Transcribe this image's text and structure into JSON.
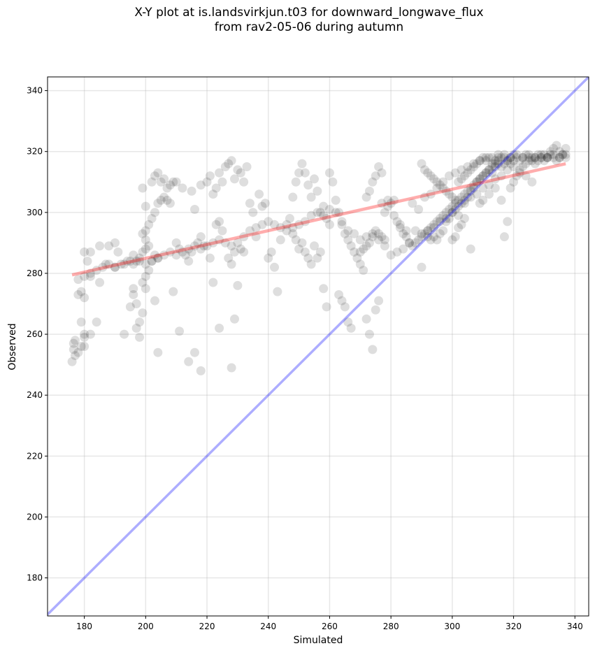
{
  "title": "X-Y plot at is.landsvirkjun.t03 for downward_longwave_flux",
  "subtitle": "from rav2-05-06 during autumn",
  "chart_data": {
    "type": "scatter",
    "title": "X-Y plot at is.landsvirkjun.t03 for downward_longwave_flux",
    "subtitle": "from rav2-05-06 during autumn",
    "xlabel": "Simulated",
    "ylabel": "Observed",
    "xlim": [
      168,
      344.5
    ],
    "ylim": [
      167.5,
      344.5
    ],
    "xticks": [
      180,
      200,
      220,
      240,
      260,
      280,
      300,
      320,
      340
    ],
    "yticks": [
      180,
      200,
      220,
      240,
      260,
      280,
      300,
      320,
      340
    ],
    "grid": true,
    "colors": {
      "points": "#000000",
      "fit_line": "#ff0000",
      "identity_line": "#0000ff"
    },
    "identity_line": {
      "x": [
        168,
        344.5
      ],
      "y": [
        168,
        344.5
      ]
    },
    "fit_line": {
      "x": [
        176,
        337
      ],
      "y": [
        279.5,
        316
      ]
    },
    "points": [
      [
        176,
        251
      ],
      [
        176.5,
        255
      ],
      [
        176.5,
        257
      ],
      [
        177,
        253
      ],
      [
        177,
        258
      ],
      [
        178,
        254
      ],
      [
        179,
        256
      ],
      [
        180,
        256
      ],
      [
        180,
        259
      ],
      [
        179,
        264
      ],
      [
        180,
        260
      ],
      [
        182,
        260
      ],
      [
        178,
        273
      ],
      [
        180,
        272
      ],
      [
        181,
        284
      ],
      [
        179,
        274
      ],
      [
        182,
        279
      ],
      [
        184,
        264
      ],
      [
        185,
        277
      ],
      [
        180,
        287
      ],
      [
        182,
        287
      ],
      [
        185,
        289
      ],
      [
        187,
        283
      ],
      [
        188,
        289
      ],
      [
        190,
        290
      ],
      [
        191,
        287
      ],
      [
        190,
        282
      ],
      [
        193,
        283
      ],
      [
        195,
        284
      ],
      [
        196,
        286
      ],
      [
        197,
        284
      ],
      [
        193,
        260
      ],
      [
        196,
        275
      ],
      [
        196,
        273
      ],
      [
        197,
        270
      ],
      [
        195,
        269
      ],
      [
        197,
        262
      ],
      [
        198,
        264
      ],
      [
        198,
        259
      ],
      [
        199,
        267
      ],
      [
        200,
        275
      ],
      [
        199,
        277
      ],
      [
        200,
        279
      ],
      [
        201,
        281
      ],
      [
        203,
        271
      ],
      [
        198,
        285
      ],
      [
        199,
        287
      ],
      [
        200,
        288
      ],
      [
        201,
        289
      ],
      [
        200,
        291
      ],
      [
        202,
        284
      ],
      [
        203,
        286
      ],
      [
        204,
        285
      ],
      [
        199,
        293
      ],
      [
        200,
        294
      ],
      [
        201,
        296
      ],
      [
        202,
        298
      ],
      [
        203,
        300
      ],
      [
        204,
        303
      ],
      [
        205,
        304
      ],
      [
        206,
        305
      ],
      [
        207,
        304
      ],
      [
        208,
        303
      ],
      [
        200,
        302
      ],
      [
        199,
        308
      ],
      [
        202,
        310
      ],
      [
        203,
        312
      ],
      [
        204,
        313
      ],
      [
        205,
        310
      ],
      [
        206,
        311
      ],
      [
        207,
        308
      ],
      [
        208,
        309
      ],
      [
        209,
        310
      ],
      [
        210,
        310
      ],
      [
        204,
        254
      ],
      [
        209,
        274
      ],
      [
        211,
        261
      ],
      [
        214,
        251
      ],
      [
        216,
        254
      ],
      [
        218,
        248
      ],
      [
        210,
        290
      ],
      [
        211,
        288
      ],
      [
        213,
        286
      ],
      [
        215,
        287
      ],
      [
        214,
        284
      ],
      [
        217,
        290
      ],
      [
        218,
        292
      ],
      [
        219,
        289
      ],
      [
        221,
        285
      ],
      [
        222,
        277
      ],
      [
        223,
        296
      ],
      [
        224,
        297
      ],
      [
        225,
        294
      ],
      [
        227,
        285
      ],
      [
        228,
        283
      ],
      [
        229,
        287
      ],
      [
        230,
        276
      ],
      [
        231,
        288
      ],
      [
        232,
        287
      ],
      [
        229,
        265
      ],
      [
        228,
        249
      ],
      [
        224,
        262
      ],
      [
        212,
        308
      ],
      [
        215,
        307
      ],
      [
        216,
        301
      ],
      [
        218,
        309
      ],
      [
        220,
        310
      ],
      [
        221,
        312
      ],
      [
        222,
        306
      ],
      [
        223,
        308
      ],
      [
        224,
        313
      ],
      [
        225,
        310
      ],
      [
        226,
        315
      ],
      [
        227,
        316
      ],
      [
        228,
        317
      ],
      [
        229,
        311
      ],
      [
        230,
        314
      ],
      [
        231,
        313
      ],
      [
        232,
        310
      ],
      [
        233,
        315
      ],
      [
        234,
        303
      ],
      [
        235,
        300
      ],
      [
        236,
        292
      ],
      [
        237,
        306
      ],
      [
        238,
        302
      ],
      [
        239,
        303
      ],
      [
        240,
        285
      ],
      [
        241,
        287
      ],
      [
        242,
        282
      ],
      [
        243,
        274
      ],
      [
        244,
        291
      ],
      [
        246,
        296
      ],
      [
        247,
        298
      ],
      [
        248,
        305
      ],
      [
        249,
        310
      ],
      [
        250,
        313
      ],
      [
        251,
        316
      ],
      [
        252,
        313
      ],
      [
        253,
        309
      ],
      [
        254,
        305
      ],
      [
        255,
        311
      ],
      [
        256,
        307
      ],
      [
        257,
        300
      ],
      [
        258,
        302
      ],
      [
        259,
        298
      ],
      [
        260,
        296
      ],
      [
        248,
        293
      ],
      [
        249,
        291
      ],
      [
        250,
        288
      ],
      [
        251,
        290
      ],
      [
        252,
        287
      ],
      [
        253,
        285
      ],
      [
        254,
        283
      ],
      [
        255,
        289
      ],
      [
        256,
        285
      ],
      [
        257,
        287
      ],
      [
        258,
        275
      ],
      [
        259,
        269
      ],
      [
        260,
        313
      ],
      [
        261,
        310
      ],
      [
        262,
        304
      ],
      [
        263,
        300
      ],
      [
        264,
        296
      ],
      [
        265,
        293
      ],
      [
        266,
        291
      ],
      [
        267,
        289
      ],
      [
        268,
        287
      ],
      [
        269,
        285
      ],
      [
        270,
        283
      ],
      [
        271,
        281
      ],
      [
        263,
        273
      ],
      [
        264,
        271
      ],
      [
        265,
        269
      ],
      [
        266,
        264
      ],
      [
        267,
        262
      ],
      [
        270,
        287
      ],
      [
        271,
        288
      ],
      [
        272,
        289
      ],
      [
        273,
        290
      ],
      [
        274,
        292
      ],
      [
        275,
        294
      ],
      [
        276,
        293
      ],
      [
        277,
        292
      ],
      [
        278,
        291
      ],
      [
        272,
        265
      ],
      [
        273,
        260
      ],
      [
        274,
        255
      ],
      [
        275,
        268
      ],
      [
        276,
        271
      ],
      [
        272,
        305
      ],
      [
        273,
        307
      ],
      [
        274,
        310
      ],
      [
        275,
        312
      ],
      [
        276,
        315
      ],
      [
        277,
        313
      ],
      [
        278,
        300
      ],
      [
        279,
        302
      ],
      [
        280,
        303
      ],
      [
        281,
        304
      ],
      [
        282,
        297
      ],
      [
        283,
        295
      ],
      [
        284,
        293
      ],
      [
        285,
        292
      ],
      [
        286,
        290
      ],
      [
        287,
        289
      ],
      [
        288,
        290
      ],
      [
        289,
        291
      ],
      [
        290,
        292
      ],
      [
        291,
        293
      ],
      [
        292,
        294
      ],
      [
        293,
        295
      ],
      [
        294,
        296
      ],
      [
        295,
        297
      ],
      [
        296,
        298
      ],
      [
        297,
        299
      ],
      [
        298,
        300
      ],
      [
        299,
        301
      ],
      [
        300,
        302
      ],
      [
        301,
        303
      ],
      [
        302,
        304
      ],
      [
        303,
        305
      ],
      [
        304,
        306
      ],
      [
        305,
        307
      ],
      [
        306,
        308
      ],
      [
        307,
        309
      ],
      [
        308,
        310
      ],
      [
        309,
        311
      ],
      [
        310,
        312
      ],
      [
        311,
        313
      ],
      [
        312,
        314
      ],
      [
        313,
        315
      ],
      [
        314,
        316
      ],
      [
        315,
        317
      ],
      [
        316,
        318
      ],
      [
        317,
        318
      ],
      [
        318,
        317
      ],
      [
        319,
        318
      ],
      [
        320,
        319
      ],
      [
        321,
        318
      ],
      [
        322,
        317
      ],
      [
        323,
        318
      ],
      [
        324,
        319
      ],
      [
        325,
        318
      ],
      [
        326,
        317
      ],
      [
        327,
        318
      ],
      [
        328,
        319
      ],
      [
        329,
        318
      ],
      [
        330,
        317
      ],
      [
        331,
        318
      ],
      [
        332,
        319
      ],
      [
        333,
        318
      ],
      [
        334,
        317
      ],
      [
        335,
        318
      ],
      [
        336,
        319
      ],
      [
        337,
        318
      ],
      [
        290,
        282
      ],
      [
        292,
        292
      ],
      [
        293,
        291
      ],
      [
        294,
        292
      ],
      [
        295,
        291
      ],
      [
        296,
        293
      ],
      [
        297,
        294
      ],
      [
        298,
        297
      ],
      [
        299,
        298
      ],
      [
        300,
        300
      ],
      [
        301,
        301
      ],
      [
        302,
        299
      ],
      [
        303,
        303
      ],
      [
        304,
        304
      ],
      [
        305,
        305
      ],
      [
        306,
        307
      ],
      [
        307,
        308
      ],
      [
        308,
        310
      ],
      [
        309,
        311
      ],
      [
        310,
        312
      ],
      [
        311,
        313
      ],
      [
        312,
        314
      ],
      [
        313,
        313
      ],
      [
        314,
        315
      ],
      [
        315,
        316
      ],
      [
        316,
        315
      ],
      [
        317,
        316
      ],
      [
        318,
        317
      ],
      [
        319,
        316
      ],
      [
        320,
        317
      ],
      [
        290,
        316
      ],
      [
        291,
        314
      ],
      [
        292,
        313
      ],
      [
        293,
        312
      ],
      [
        294,
        311
      ],
      [
        295,
        310
      ],
      [
        296,
        309
      ],
      [
        297,
        308
      ],
      [
        298,
        307
      ],
      [
        299,
        306
      ],
      [
        300,
        305
      ],
      [
        301,
        304
      ],
      [
        302,
        310
      ],
      [
        303,
        311
      ],
      [
        304,
        312
      ],
      [
        305,
        313
      ],
      [
        306,
        314
      ],
      [
        307,
        315
      ],
      [
        308,
        316
      ],
      [
        309,
        317
      ],
      [
        310,
        318
      ],
      [
        311,
        317
      ],
      [
        312,
        318
      ],
      [
        313,
        316
      ],
      [
        314,
        317
      ],
      [
        315,
        318
      ],
      [
        300,
        291
      ],
      [
        301,
        292
      ],
      [
        302,
        295
      ],
      [
        303,
        296
      ],
      [
        304,
        298
      ],
      [
        306,
        288
      ],
      [
        309,
        303
      ],
      [
        310,
        304
      ],
      [
        312,
        306
      ],
      [
        314,
        308
      ],
      [
        316,
        304
      ],
      [
        317,
        292
      ],
      [
        318,
        297
      ],
      [
        319,
        308
      ],
      [
        320,
        310
      ],
      [
        321,
        312
      ],
      [
        322,
        314
      ],
      [
        323,
        315
      ],
      [
        324,
        316
      ],
      [
        325,
        317
      ],
      [
        326,
        318
      ],
      [
        327,
        316
      ],
      [
        328,
        317
      ],
      [
        329,
        318
      ],
      [
        330,
        319
      ],
      [
        331,
        318
      ],
      [
        332,
        320
      ],
      [
        333,
        321
      ],
      [
        334,
        322
      ],
      [
        335,
        320
      ],
      [
        336,
        319
      ],
      [
        337,
        321
      ],
      [
        326,
        310
      ],
      [
        324,
        312
      ],
      [
        322,
        313
      ],
      [
        320,
        315
      ],
      [
        318,
        314
      ],
      [
        316,
        312
      ],
      [
        314,
        311
      ],
      [
        312,
        309
      ],
      [
        310,
        308
      ],
      [
        308,
        306
      ],
      [
        306,
        305
      ],
      [
        304,
        303
      ],
      [
        302,
        302
      ],
      [
        300,
        300
      ],
      [
        298,
        298
      ],
      [
        296,
        297
      ],
      [
        294,
        295
      ],
      [
        292,
        294
      ],
      [
        290,
        293
      ],
      [
        288,
        294
      ],
      [
        286,
        290
      ],
      [
        284,
        288
      ],
      [
        282,
        287
      ],
      [
        280,
        286
      ],
      [
        278,
        289
      ],
      [
        276,
        291
      ],
      [
        274,
        293
      ],
      [
        272,
        292
      ],
      [
        270,
        291
      ],
      [
        268,
        293
      ],
      [
        266,
        294
      ],
      [
        264,
        297
      ],
      [
        262,
        300
      ],
      [
        260,
        301
      ],
      [
        258,
        299
      ],
      [
        256,
        300
      ],
      [
        254,
        299
      ],
      [
        252,
        297
      ],
      [
        250,
        296
      ],
      [
        248,
        295
      ],
      [
        246,
        294
      ],
      [
        244,
        295
      ],
      [
        242,
        296
      ],
      [
        240,
        297
      ],
      [
        238,
        296
      ],
      [
        236,
        295
      ],
      [
        234,
        294
      ],
      [
        232,
        292
      ],
      [
        230,
        290
      ],
      [
        228,
        289
      ],
      [
        226,
        290
      ],
      [
        224,
        291
      ],
      [
        222,
        290
      ],
      [
        220,
        289
      ],
      [
        218,
        288
      ],
      [
        216,
        289
      ],
      [
        214,
        288
      ],
      [
        212,
        287
      ],
      [
        210,
        286
      ],
      [
        208,
        287
      ],
      [
        206,
        286
      ],
      [
        204,
        285
      ],
      [
        202,
        284
      ],
      [
        200,
        283
      ],
      [
        198,
        284
      ],
      [
        196,
        283
      ],
      [
        194,
        284
      ],
      [
        192,
        283
      ],
      [
        190,
        282
      ],
      [
        188,
        283
      ],
      [
        186,
        282
      ],
      [
        184,
        281
      ],
      [
        182,
        280
      ],
      [
        180,
        279
      ],
      [
        178,
        278
      ],
      [
        277,
        303
      ],
      [
        279,
        304
      ],
      [
        281,
        299
      ],
      [
        283,
        296
      ],
      [
        285,
        294
      ],
      [
        287,
        303
      ],
      [
        289,
        301
      ],
      [
        291,
        305
      ],
      [
        293,
        306
      ],
      [
        295,
        308
      ],
      [
        297,
        310
      ],
      [
        299,
        312
      ],
      [
        301,
        313
      ],
      [
        303,
        314
      ],
      [
        305,
        315
      ],
      [
        307,
        316
      ],
      [
        309,
        317
      ],
      [
        311,
        318
      ],
      [
        313,
        318
      ],
      [
        315,
        319
      ],
      [
        317,
        319
      ],
      [
        319,
        318
      ],
      [
        321,
        319
      ],
      [
        323,
        318
      ],
      [
        325,
        319
      ],
      [
        327,
        318
      ],
      [
        329,
        319
      ],
      [
        331,
        318
      ],
      [
        333,
        319
      ],
      [
        335,
        318
      ],
      [
        337,
        319
      ]
    ]
  }
}
